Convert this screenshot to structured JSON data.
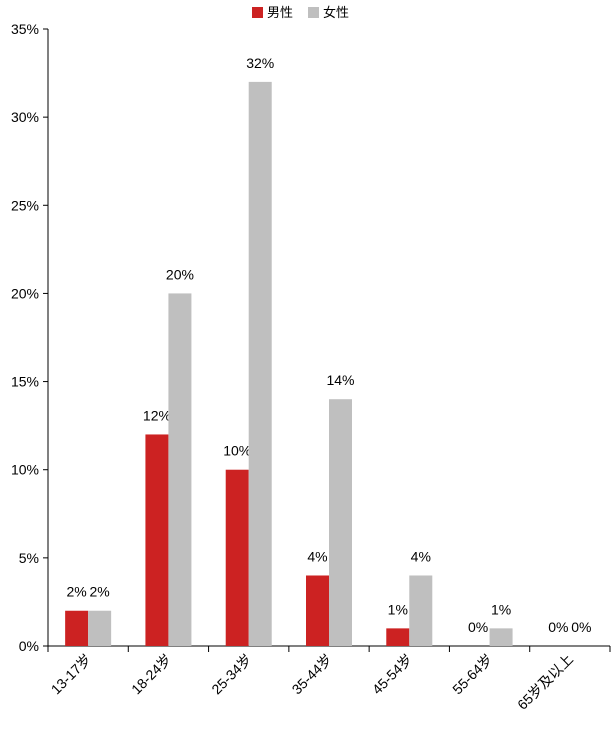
{
  "chart_data": {
    "type": "bar",
    "categories": [
      "13-17岁",
      "18-24岁",
      "25-34岁",
      "35-44岁",
      "45-54岁",
      "55-64岁",
      "65岁及以上"
    ],
    "series": [
      {
        "name": "男性",
        "color": "#cc2222",
        "values": [
          2,
          12,
          10,
          4,
          1,
          0,
          0
        ],
        "value_labels": [
          "2%",
          "12%",
          "10%",
          "4%",
          "1%",
          "0%",
          "0%"
        ]
      },
      {
        "name": "女性",
        "color": "#bfbfbf",
        "values": [
          2,
          20,
          32,
          14,
          4,
          1,
          0
        ],
        "value_labels": [
          "2%",
          "20%",
          "32%",
          "14%",
          "4%",
          "1%",
          "0%"
        ]
      }
    ],
    "ylim": [
      0,
      35
    ],
    "yticks": [
      {
        "value": 0,
        "label": "0%"
      },
      {
        "value": 5,
        "label": "5%"
      },
      {
        "value": 10,
        "label": "10%"
      },
      {
        "value": 15,
        "label": "15%"
      },
      {
        "value": 20,
        "label": "20%"
      },
      {
        "value": 25,
        "label": "25%"
      },
      {
        "value": 30,
        "label": "30%"
      },
      {
        "value": 35,
        "label": "35%"
      }
    ],
    "legend": "top"
  }
}
